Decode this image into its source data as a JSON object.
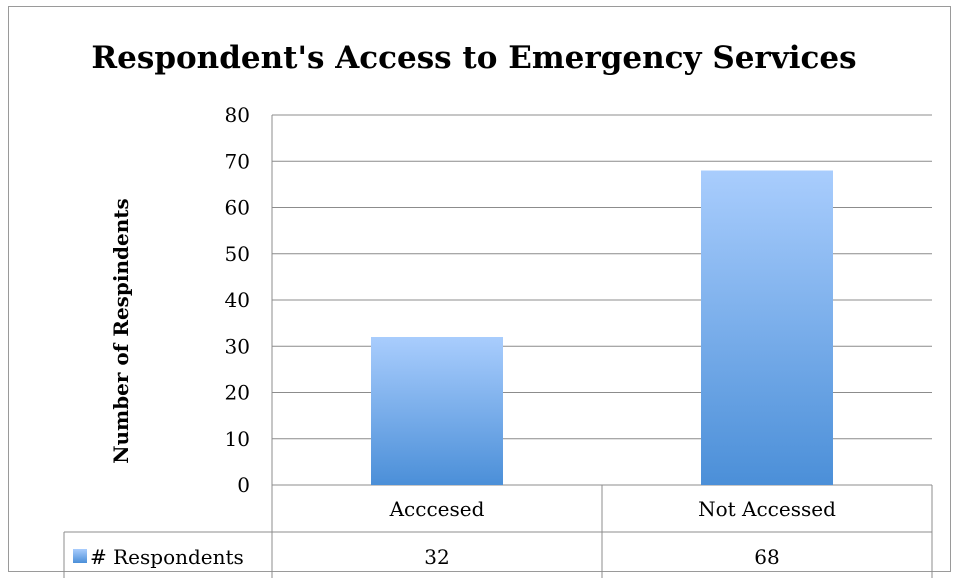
{
  "chart_data": {
    "type": "bar",
    "title": "Respondent's Access to Emergency Services",
    "ylabel": "Number of Respindents",
    "xlabel": "",
    "categories": [
      "Acccesed",
      "Not Accessed"
    ],
    "series": [
      {
        "name": "# Respondents",
        "values": [
          32,
          68
        ],
        "color": "#6fa6e8"
      }
    ],
    "ylim": [
      0,
      80
    ],
    "yticks": [
      0,
      10,
      20,
      30,
      40,
      50,
      60,
      70,
      80
    ],
    "grid": true,
    "legend": "data-table-left",
    "data_table": true
  }
}
